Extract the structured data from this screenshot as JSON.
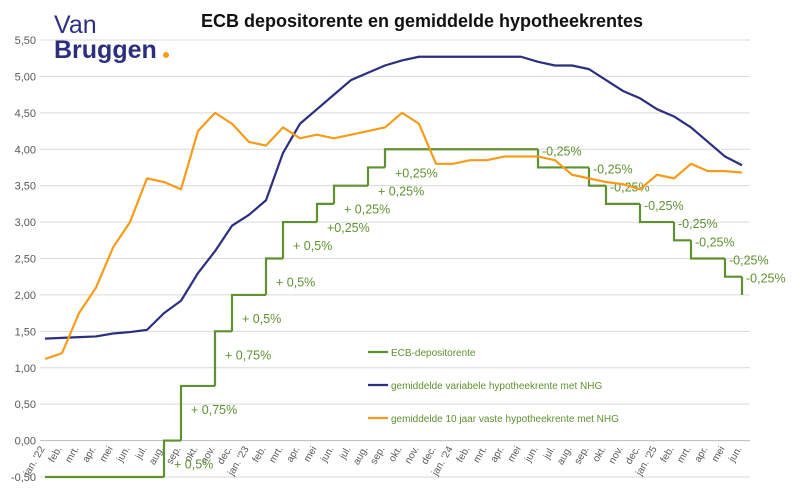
{
  "brand": {
    "line1": "Van",
    "line2": "Bruggen"
  },
  "chart_data": {
    "type": "line",
    "title": "ECB depositorente en gemiddelde hypotheekrentes",
    "categories": [
      "jan. '22",
      "feb.",
      "mrt.",
      "apr.",
      "mei",
      "jun.",
      "jul.",
      "aug.",
      "sep.",
      "okt.",
      "nov.",
      "dec.",
      "jan. '23",
      "feb.",
      "mrt.",
      "apr.",
      "mei",
      "jun.",
      "jul.",
      "aug.",
      "sep.",
      "okt.",
      "nov.",
      "dec.",
      "jan. '24",
      "feb.",
      "mrt.",
      "apr.",
      "mei",
      "jun.",
      "jul.",
      "aug.",
      "sep.",
      "okt.",
      "nov.",
      "dec.",
      "jan. '25",
      "feb.",
      "mrt.",
      "apr.",
      "mei",
      "jun."
    ],
    "series": [
      {
        "name": "ECB-depositorente",
        "color": "#5f9130",
        "step": true,
        "values": [
          -0.5,
          -0.5,
          -0.5,
          -0.5,
          -0.5,
          -0.5,
          -0.5,
          0,
          0.75,
          0.75,
          1.5,
          2.0,
          2.0,
          2.5,
          3.0,
          3.0,
          3.25,
          3.5,
          3.5,
          3.75,
          4.0,
          4.0,
          4.0,
          4.0,
          4.0,
          4.0,
          4.0,
          4.0,
          4.0,
          3.75,
          3.75,
          3.75,
          3.5,
          3.25,
          3.25,
          3.0,
          3.0,
          2.75,
          2.5,
          2.5,
          2.25,
          2.0
        ],
        "value_labels": [
          null,
          null,
          null,
          null,
          null,
          null,
          null,
          "+ 0,5%",
          "+ 0,75%",
          null,
          "+ 0,75%",
          "+ 0,5%",
          null,
          "+ 0,5%",
          "+ 0,5%",
          null,
          "+0,25%",
          "+ 0,25%",
          null,
          "+ 0,25%",
          "+0,25%",
          null,
          null,
          null,
          null,
          null,
          null,
          null,
          null,
          "-0,25%",
          null,
          null,
          "-0,25%",
          "-0,25%",
          null,
          "-0,25%",
          null,
          "-0,25%",
          "-0,25%",
          null,
          "-0,25%",
          "-0,25%"
        ]
      },
      {
        "name": "gemiddelde variabele hypotheekrente met NHG",
        "color": "#2b2f7e",
        "values": [
          1.4,
          1.41,
          1.42,
          1.43,
          1.47,
          1.49,
          1.52,
          1.75,
          1.92,
          2.3,
          2.6,
          2.95,
          3.1,
          3.3,
          3.95,
          4.35,
          4.55,
          4.75,
          4.95,
          5.05,
          5.15,
          5.22,
          5.27,
          5.27,
          5.27,
          5.27,
          5.27,
          5.27,
          5.27,
          5.2,
          5.15,
          5.15,
          5.1,
          4.95,
          4.8,
          4.7,
          4.55,
          4.45,
          4.3,
          4.1,
          3.9,
          3.78
        ]
      },
      {
        "name": "gemiddelde 10 jaar vaste hypotheekrente met NHG",
        "color": "#f59c1a",
        "values": [
          1.12,
          1.2,
          1.75,
          2.1,
          2.65,
          3.0,
          3.6,
          3.55,
          3.45,
          4.25,
          4.5,
          4.35,
          4.1,
          4.05,
          4.3,
          4.15,
          4.2,
          4.15,
          4.2,
          4.25,
          4.3,
          4.5,
          4.35,
          3.8,
          3.8,
          3.85,
          3.85,
          3.9,
          3.9,
          3.9,
          3.85,
          3.65,
          3.6,
          3.55,
          3.52,
          3.45,
          3.65,
          3.6,
          3.8,
          3.7,
          3.7,
          3.68
        ]
      }
    ],
    "ylim": [
      -0.5,
      5.5
    ],
    "yticks": [
      {
        "value": -0.5,
        "label": "-0,50"
      },
      {
        "value": 0,
        "label": "0,00"
      },
      {
        "value": 0.5,
        "label": "0,50"
      },
      {
        "value": 1,
        "label": "1,00"
      },
      {
        "value": 1.5,
        "label": "1,50"
      },
      {
        "value": 2,
        "label": "2,00"
      },
      {
        "value": 2.5,
        "label": "2,50"
      },
      {
        "value": 3,
        "label": "3,00"
      },
      {
        "value": 3.5,
        "label": "3,50"
      },
      {
        "value": 4,
        "label": "4,00"
      },
      {
        "value": 4.5,
        "label": "4,50"
      },
      {
        "value": 5,
        "label": "5,00"
      },
      {
        "value": 5.5,
        "label": "5,50"
      }
    ],
    "grid": true
  }
}
